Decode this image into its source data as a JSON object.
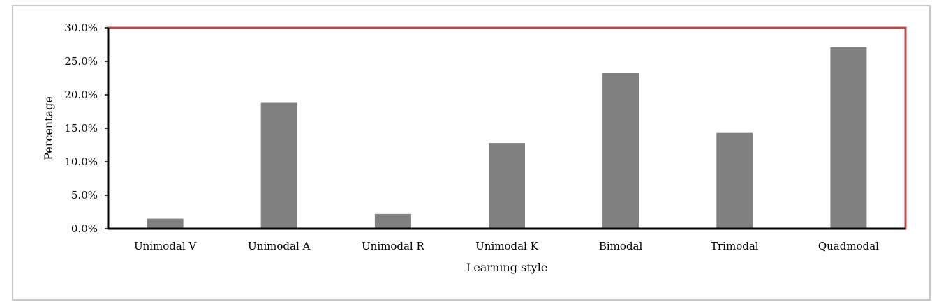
{
  "chart_data": {
    "type": "bar",
    "title": "",
    "xlabel": "Learning style",
    "ylabel": "Percentage",
    "ylim": [
      0,
      30
    ],
    "yticks": [
      0,
      5,
      10,
      15,
      20,
      25,
      30
    ],
    "ytick_labels": [
      "0.0%",
      "5.0%",
      "10.0%",
      "15.0%",
      "20.0%",
      "25.0%",
      "30.0%"
    ],
    "categories": [
      "Unimodal V",
      "Unimodal A",
      "Unimodal R",
      "Unimodal K",
      "Bimodal",
      "Trimodal",
      "Quadmodal"
    ],
    "values": [
      1.5,
      18.8,
      2.2,
      12.8,
      23.3,
      14.3,
      27.1
    ],
    "grid": false,
    "bar_color": "#808080",
    "plot_border_color": "#b94a48",
    "axis_color": "#000000"
  }
}
